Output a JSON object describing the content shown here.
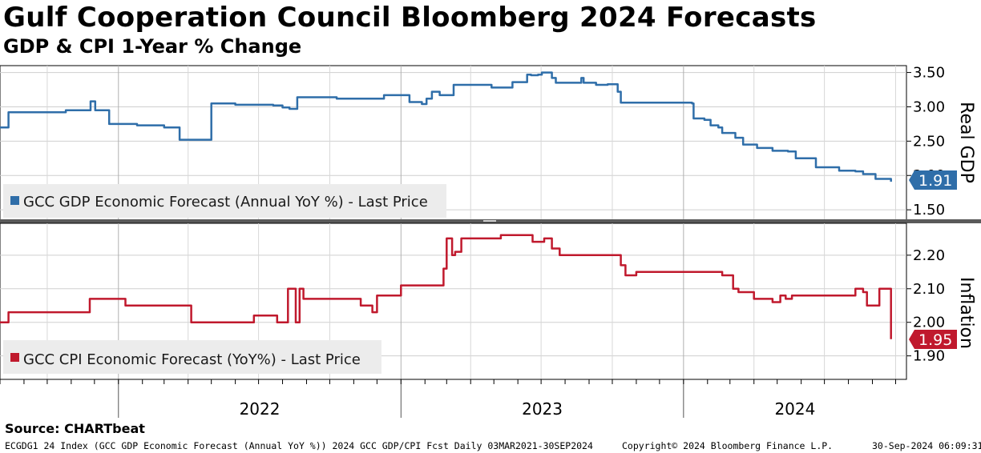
{
  "title": "Gulf Cooperation Council Bloomberg 2024 Forecasts",
  "subtitle": "GDP & CPI 1-Year % Change",
  "source": "Source: CHARTbeat",
  "footer": {
    "left": "ECGDG1 24 Index (GCC GDP Economic Forecast (Annual YoY %)) 2024 GCC GDP/CPI Fcst  Daily 03MAR2021-30SEP2024",
    "center": "Copyright© 2024 Bloomberg Finance L.P.",
    "right": "30-Sep-2024 06:09:31"
  },
  "colors": {
    "gdp": "#2f6ea9",
    "cpi": "#c0192d"
  },
  "chart_data": [
    {
      "type": "line",
      "panel": "top",
      "ylabel": "Real GDP",
      "ylim": [
        1.35,
        3.6
      ],
      "yticks": [
        "3.50",
        "3.00",
        "2.50",
        "2.00",
        "1.50"
      ],
      "xlim": [
        "2021-08-01",
        "2024-10-15"
      ],
      "xticks": [
        "2022",
        "2023",
        "2024"
      ],
      "legend": "GCC GDP Economic Forecast (Annual YoY %) - Last Price",
      "last_value": "1.91",
      "series": [
        {
          "name": "GCC GDP Economic Forecast (Annual YoY %) - Last Price",
          "x": [
            "2021-08-01",
            "2021-08-05",
            "2021-08-12",
            "2021-09-20",
            "2021-10-25",
            "2021-11-22",
            "2021-11-26",
            "2021-12-02",
            "2021-12-09",
            "2021-12-20",
            "2022-01-05",
            "2022-01-25",
            "2022-02-15",
            "2022-03-01",
            "2022-03-16",
            "2022-03-21",
            "2022-04-10",
            "2022-05-01",
            "2022-06-01",
            "2022-07-02",
            "2022-07-20",
            "2022-08-01",
            "2022-08-10",
            "2022-08-20",
            "2022-10-10",
            "2022-11-10",
            "2022-12-10",
            "2022-12-31",
            "2023-01-12",
            "2023-01-28",
            "2023-02-03",
            "2023-02-10",
            "2023-02-20",
            "2023-03-10",
            "2023-04-10",
            "2023-04-28",
            "2023-05-15",
            "2023-05-25",
            "2023-06-10",
            "2023-06-13",
            "2023-06-18",
            "2023-06-27",
            "2023-07-02",
            "2023-07-15",
            "2023-07-20",
            "2023-08-20",
            "2023-08-22",
            "2023-08-25",
            "2023-09-10",
            "2023-09-25",
            "2023-10-08",
            "2023-10-12",
            "2023-10-20",
            "2023-11-20",
            "2024-01-12",
            "2024-01-14",
            "2024-01-28",
            "2024-02-05",
            "2024-02-15",
            "2024-02-20",
            "2024-03-04",
            "2024-03-08",
            "2024-03-18",
            "2024-04-05",
            "2024-04-25",
            "2024-05-15",
            "2024-05-25",
            "2024-06-20",
            "2024-07-20",
            "2024-08-10",
            "2024-08-20",
            "2024-09-05",
            "2024-09-25"
          ],
          "values": [
            2.7,
            2.7,
            2.92,
            2.92,
            2.95,
            2.95,
            3.08,
            2.95,
            2.95,
            2.75,
            2.75,
            2.73,
            2.73,
            2.7,
            2.7,
            2.52,
            2.52,
            3.05,
            3.03,
            3.03,
            3.02,
            2.99,
            2.97,
            3.14,
            3.12,
            3.12,
            3.17,
            3.17,
            3.07,
            3.04,
            3.12,
            3.22,
            3.17,
            3.32,
            3.32,
            3.28,
            3.28,
            3.36,
            3.36,
            3.47,
            3.46,
            3.47,
            3.5,
            3.42,
            3.35,
            3.35,
            3.42,
            3.35,
            3.32,
            3.33,
            3.22,
            3.06,
            3.06,
            3.06,
            3.05,
            2.83,
            2.81,
            2.73,
            2.7,
            2.62,
            2.62,
            2.55,
            2.45,
            2.4,
            2.36,
            2.35,
            2.25,
            2.12,
            2.07,
            2.06,
            2.02,
            1.95,
            1.91
          ]
        }
      ]
    },
    {
      "type": "line",
      "panel": "bottom",
      "ylabel": "Inflation",
      "ylim": [
        1.83,
        2.295
      ],
      "yticks": [
        "2.20",
        "2.10",
        "2.00",
        "1.90"
      ],
      "xlim": [
        "2021-08-01",
        "2024-10-15"
      ],
      "xticks": [
        "2022",
        "2023",
        "2024"
      ],
      "legend": "GCC CPI Economic Forecast (YoY%) - Last Price",
      "last_value": "1.95",
      "series": [
        {
          "name": "GCC CPI Economic Forecast (YoY%) - Last Price",
          "x": [
            "2021-08-01",
            "2021-08-12",
            "2021-11-20",
            "2021-11-25",
            "2022-01-10",
            "2022-04-01",
            "2022-04-05",
            "2022-06-20",
            "2022-06-25",
            "2022-07-20",
            "2022-07-25",
            "2022-08-05",
            "2022-08-08",
            "2022-08-18",
            "2022-08-23",
            "2022-08-28",
            "2022-09-01",
            "2022-11-05",
            "2022-11-10",
            "2022-11-25",
            "2022-12-01",
            "2023-01-01",
            "2023-02-10",
            "2023-02-25",
            "2023-03-01",
            "2023-03-08",
            "2023-03-12",
            "2023-03-20",
            "2023-04-10",
            "2023-05-10",
            "2023-06-10",
            "2023-06-20",
            "2023-07-05",
            "2023-07-15",
            "2023-07-25",
            "2023-08-10",
            "2023-09-10",
            "2023-10-05",
            "2023-10-12",
            "2023-10-18",
            "2023-10-25",
            "2023-11-01",
            "2023-12-20",
            "2024-01-10",
            "2024-02-20",
            "2024-03-05",
            "2024-03-12",
            "2024-04-01",
            "2024-04-25",
            "2024-05-05",
            "2024-05-12",
            "2024-05-20",
            "2024-08-05",
            "2024-08-10",
            "2024-08-20",
            "2024-08-25",
            "2024-09-10",
            "2024-09-14",
            "2024-09-25"
          ],
          "values": [
            2.0,
            2.03,
            2.03,
            2.07,
            2.05,
            2.05,
            2.0,
            2.0,
            2.02,
            2.02,
            2.0,
            2.0,
            2.1,
            2.0,
            2.1,
            2.07,
            2.07,
            2.07,
            2.05,
            2.03,
            2.08,
            2.11,
            2.11,
            2.16,
            2.25,
            2.2,
            2.21,
            2.25,
            2.25,
            2.26,
            2.26,
            2.24,
            2.25,
            2.22,
            2.2,
            2.2,
            2.2,
            2.2,
            2.17,
            2.14,
            2.14,
            2.15,
            2.15,
            2.15,
            2.14,
            2.1,
            2.09,
            2.07,
            2.06,
            2.08,
            2.07,
            2.08,
            2.08,
            2.1,
            2.09,
            2.05,
            2.1,
            2.1,
            1.95
          ]
        }
      ]
    }
  ]
}
